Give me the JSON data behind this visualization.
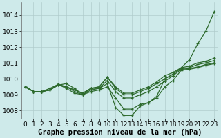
{
  "x": [
    0,
    1,
    2,
    3,
    4,
    5,
    6,
    7,
    8,
    9,
    10,
    11,
    12,
    13,
    14,
    15,
    16,
    17,
    18,
    19,
    20,
    21,
    22,
    23
  ],
  "lines": [
    [
      1009.5,
      1009.2,
      1009.2,
      1009.3,
      1009.6,
      1009.7,
      1009.4,
      1009.0,
      1009.4,
      1009.4,
      1009.7,
      1008.2,
      1007.7,
      1007.7,
      1008.3,
      1008.5,
      1008.9,
      1010.0,
      1010.3,
      1010.7,
      1011.2,
      1012.2,
      1013.0,
      1014.2
    ],
    [
      1009.5,
      1009.2,
      1009.2,
      1009.3,
      1009.6,
      1009.5,
      1009.3,
      1009.1,
      1009.4,
      1009.5,
      1010.1,
      1009.5,
      1009.1,
      1009.1,
      1009.3,
      1009.5,
      1009.8,
      1010.2,
      1010.4,
      1010.7,
      1010.8,
      1011.0,
      1011.1,
      1011.3
    ],
    [
      1009.5,
      1009.2,
      1009.2,
      1009.3,
      1009.65,
      1009.5,
      1009.3,
      1009.1,
      1009.4,
      1009.5,
      1010.1,
      1009.4,
      1009.0,
      1009.0,
      1009.2,
      1009.4,
      1009.7,
      1010.0,
      1010.3,
      1010.65,
      1010.7,
      1010.9,
      1011.0,
      1011.15
    ],
    [
      1009.5,
      1009.2,
      1009.2,
      1009.3,
      1009.65,
      1009.5,
      1009.2,
      1009.0,
      1009.3,
      1009.4,
      1009.9,
      1009.2,
      1008.8,
      1008.8,
      1009.0,
      1009.2,
      1009.5,
      1009.85,
      1010.2,
      1010.6,
      1010.65,
      1010.75,
      1010.9,
      1011.0
    ],
    [
      1009.5,
      1009.2,
      1009.2,
      1009.4,
      1009.65,
      1009.4,
      1009.1,
      1009.0,
      1009.2,
      1009.3,
      1009.5,
      1008.8,
      1008.1,
      1008.1,
      1008.4,
      1008.5,
      1008.8,
      1009.5,
      1009.9,
      1010.55,
      1010.6,
      1010.7,
      1010.85,
      1010.95
    ]
  ],
  "line_color": "#2d6a2d",
  "marker": "+",
  "markersize": 3.5,
  "linewidth": 0.9,
  "bg_color": "#ceeaea",
  "grid_color": "#b0cccc",
  "xlabel": "Graphe pression niveau de la mer (hPa)",
  "ylim": [
    1007.5,
    1014.8
  ],
  "yticks": [
    1008,
    1009,
    1010,
    1011,
    1012,
    1013,
    1014
  ],
  "xticks": [
    0,
    1,
    2,
    3,
    4,
    5,
    6,
    7,
    8,
    9,
    10,
    11,
    12,
    13,
    14,
    15,
    16,
    17,
    18,
    19,
    20,
    21,
    22,
    23
  ],
  "xlabel_fontsize": 7.5,
  "tick_fontsize": 6.5
}
